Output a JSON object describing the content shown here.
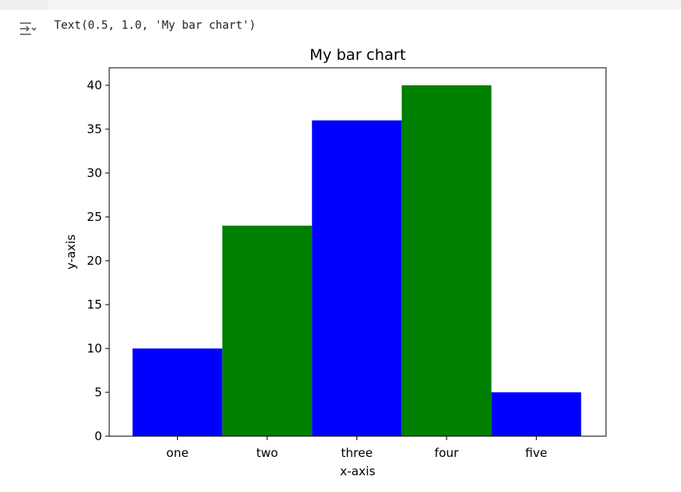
{
  "output": {
    "icon": "output-toggle-icon",
    "text": "Text(0.5, 1.0, 'My bar chart')"
  },
  "chart_data": {
    "type": "bar",
    "title": "My bar chart",
    "xlabel": "x-axis",
    "ylabel": "y-axis",
    "categories": [
      "one",
      "two",
      "three",
      "four",
      "five"
    ],
    "values": [
      10,
      24,
      36,
      40,
      5
    ],
    "colors": [
      "#0000ff",
      "#008000",
      "#0000ff",
      "#008000",
      "#0000ff"
    ],
    "ylim": [
      0,
      42
    ],
    "yticks": [
      "0",
      "5",
      "10",
      "15",
      "20",
      "25",
      "30",
      "35",
      "40"
    ],
    "grid": false
  }
}
